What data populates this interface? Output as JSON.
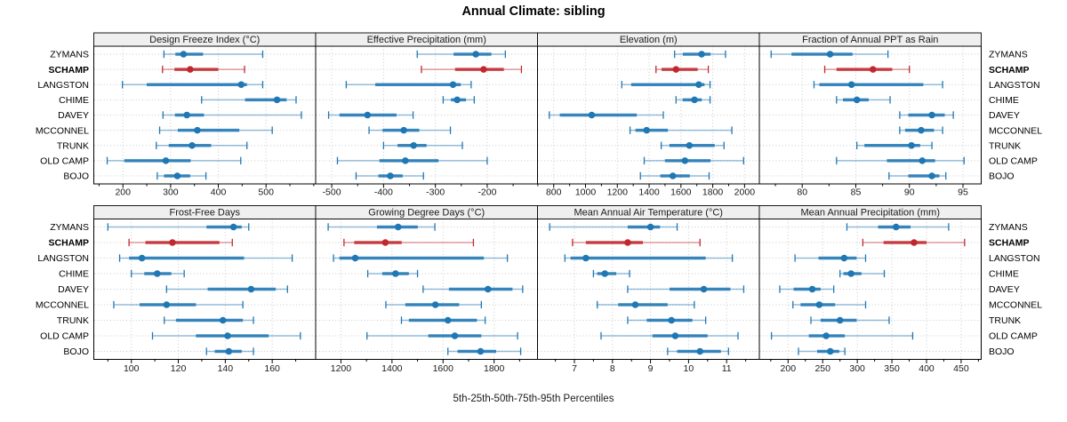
{
  "title": "Annual Climate: sibling",
  "caption": "5th-25th-50th-75th-95th Percentiles",
  "colors": {
    "series": "#1f77b4",
    "highlight": "#c1282d",
    "grid": "#c9c9c9",
    "strip_bg": "#efefef",
    "panel_border": "#000000",
    "text": "#000000"
  },
  "chart_data": {
    "type": "scatter",
    "variant": "horizontal five-number percentile interval plot (dot = median, thick bar = 25th-75th, thin line = 5th-95th with end caps)",
    "percentile_levels": [
      5,
      25,
      50,
      75,
      95
    ],
    "legend": "5th-25th-50th-75th-95th Percentiles",
    "highlight_site": "SCHAMP",
    "sites": [
      "ZYMANS",
      "SCHAMP",
      "LANGSTON",
      "CHIME",
      "DAVEY",
      "MCCONNEL",
      "TRUNK",
      "OLD CAMP",
      "BOJO"
    ],
    "panels": [
      {
        "title": "Design Freeze Index (°C)",
        "xlim": [
          139,
          604
        ],
        "major_ticks": [
          200,
          300,
          400,
          500
        ],
        "minor_step": 50,
        "values": [
          [
            286,
            310,
            327,
            368,
            493
          ],
          [
            283,
            308,
            341,
            400,
            455
          ],
          [
            199,
            250,
            448,
            460,
            493
          ],
          [
            365,
            456,
            523,
            543,
            563
          ],
          [
            284,
            309,
            334,
            370,
            574
          ],
          [
            277,
            315,
            356,
            444,
            513
          ],
          [
            270,
            296,
            345,
            385,
            460
          ],
          [
            167,
            203,
            290,
            342,
            447
          ],
          [
            272,
            286,
            314,
            341,
            374
          ]
        ]
      },
      {
        "title": "Effective Precipitation (mm)",
        "xlim": [
          -531,
          -103
        ],
        "major_ticks": [
          -500,
          -400,
          -300,
          -200
        ],
        "minor_step": 50,
        "values": [
          [
            -335,
            -265,
            -222,
            -192,
            -165
          ],
          [
            -327,
            -262,
            -207,
            -168,
            -134
          ],
          [
            -472,
            -416,
            -266,
            -251,
            -231
          ],
          [
            -285,
            -270,
            -258,
            -241,
            -225
          ],
          [
            -506,
            -485,
            -431,
            -375,
            -343
          ],
          [
            -428,
            -402,
            -361,
            -331,
            -271
          ],
          [
            -400,
            -373,
            -342,
            -317,
            -248
          ],
          [
            -489,
            -408,
            -358,
            -294,
            -200
          ],
          [
            -453,
            -410,
            -387,
            -363,
            -323
          ]
        ]
      },
      {
        "title": "Elevation (m)",
        "xlim": [
          698,
          2093
        ],
        "major_ticks": [
          800,
          1000,
          1200,
          1400,
          1600,
          1800,
          2000
        ],
        "minor_step": 100,
        "values": [
          [
            1560,
            1612,
            1730,
            1786,
            1880
          ],
          [
            1443,
            1478,
            1569,
            1705,
            1772
          ],
          [
            1228,
            1287,
            1712,
            1748,
            1783
          ],
          [
            1569,
            1611,
            1685,
            1731,
            1783
          ],
          [
            772,
            838,
            1039,
            1322,
            1489
          ],
          [
            1280,
            1314,
            1384,
            1518,
            1920
          ],
          [
            1476,
            1527,
            1653,
            1812,
            1871
          ],
          [
            1369,
            1499,
            1625,
            1786,
            1994
          ],
          [
            1345,
            1470,
            1549,
            1656,
            1777
          ]
        ]
      },
      {
        "title": "Fraction of Annual PPT as Rain",
        "xlim": [
          76,
          96.7
        ],
        "major_ticks": [
          80,
          85,
          90,
          95
        ],
        "minor_step": 2.5,
        "values": [
          [
            77.1,
            79.0,
            82.6,
            84.7,
            88.0
          ],
          [
            82.1,
            83.2,
            86.6,
            88.4,
            90.0
          ],
          [
            81.1,
            81.6,
            84.6,
            91.3,
            93.1
          ],
          [
            83.2,
            83.8,
            85.1,
            86.2,
            88.2
          ],
          [
            89.1,
            89.9,
            92.1,
            93.3,
            94.1
          ],
          [
            89.1,
            89.6,
            91.1,
            92.3,
            93.1
          ],
          [
            85.1,
            85.8,
            90.2,
            91.0,
            92.1
          ],
          [
            83.2,
            87.9,
            91.2,
            92.4,
            95.1
          ],
          [
            88.1,
            89.9,
            92.1,
            92.8,
            93.4
          ]
        ]
      },
      {
        "title": "Frost-Free Days",
        "xlim": [
          84,
          178.5
        ],
        "major_ticks": [
          100,
          120,
          140,
          160
        ],
        "minor_step": 10,
        "values": [
          [
            90,
            132,
            143.5,
            147,
            150
          ],
          [
            99,
            106,
            117.5,
            137.5,
            143
          ],
          [
            95,
            99,
            104.5,
            148,
            168.5
          ],
          [
            100,
            105.5,
            111,
            117,
            122.5
          ],
          [
            115,
            132.5,
            151,
            161.5,
            166.5
          ],
          [
            92.5,
            103.5,
            115,
            127.5,
            147.5
          ],
          [
            114,
            119,
            139,
            147.5,
            152
          ],
          [
            109,
            127.5,
            141,
            158.5,
            172
          ],
          [
            132,
            135.5,
            141.5,
            147,
            152
          ]
        ]
      },
      {
        "title": "Growing Degree Days (°C)",
        "xlim": [
          1101,
          1970
        ],
        "major_ticks": [
          1200,
          1400,
          1600,
          1800
        ],
        "minor_step": 100,
        "values": [
          [
            1150,
            1341,
            1424,
            1501,
            1568
          ],
          [
            1212,
            1252,
            1374,
            1438,
            1719
          ],
          [
            1171,
            1194,
            1256,
            1760,
            1852
          ],
          [
            1305,
            1362,
            1414,
            1466,
            1500
          ],
          [
            1522,
            1623,
            1776,
            1872,
            1912
          ],
          [
            1376,
            1452,
            1570,
            1663,
            1750
          ],
          [
            1437,
            1466,
            1619,
            1733,
            1765
          ],
          [
            1302,
            1542,
            1646,
            1750,
            1892
          ],
          [
            1619,
            1657,
            1747,
            1808,
            1904
          ]
        ]
      },
      {
        "title": "Mean Annual Air Temperature (°C)",
        "xlim": [
          6.03,
          11.86
        ],
        "major_ticks": [
          7,
          8,
          9,
          10,
          11
        ],
        "minor_step": 0.5,
        "values": [
          [
            6.35,
            8.4,
            9.0,
            9.25,
            9.7
          ],
          [
            6.95,
            7.3,
            8.4,
            8.8,
            10.3
          ],
          [
            6.75,
            6.9,
            7.3,
            10.45,
            11.15
          ],
          [
            7.5,
            7.6,
            7.8,
            8.1,
            8.45
          ],
          [
            8.4,
            9.5,
            10.4,
            11.1,
            11.45
          ],
          [
            7.6,
            8.15,
            8.6,
            9.45,
            10.15
          ],
          [
            8.4,
            8.9,
            9.55,
            10.1,
            10.45
          ],
          [
            7.7,
            9.05,
            9.65,
            10.5,
            11.3
          ],
          [
            9.45,
            9.7,
            10.3,
            10.85,
            11.05
          ]
        ]
      },
      {
        "title": "Mean Annual Precipitation (mm)",
        "xlim": [
          158.5,
          479
        ],
        "major_ticks": [
          200,
          250,
          300,
          350,
          400,
          450
        ],
        "minor_step": 25,
        "values": [
          [
            285,
            330,
            356,
            377,
            432
          ],
          [
            308,
            338,
            382,
            400,
            455
          ],
          [
            210,
            244,
            281,
            299,
            312
          ],
          [
            275,
            280,
            291,
            306,
            339
          ],
          [
            188,
            208,
            235,
            247,
            266
          ],
          [
            207,
            218,
            245,
            268,
            312
          ],
          [
            233,
            247,
            275,
            299,
            346
          ],
          [
            176,
            230,
            255,
            282,
            380
          ],
          [
            215,
            242,
            261,
            274,
            282
          ]
        ]
      }
    ]
  }
}
